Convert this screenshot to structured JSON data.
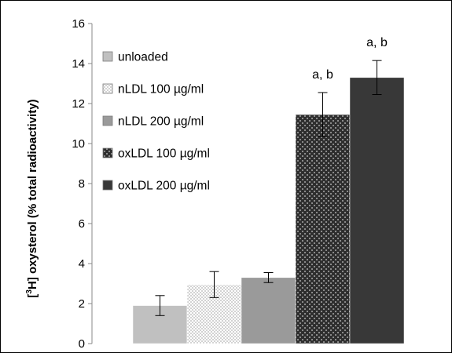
{
  "chart_data": {
    "type": "bar",
    "title": "",
    "ylabel_prefix": "[",
    "ylabel_sup": "3",
    "ylabel_suffix": "H] oxysterol (% total radioactivity)",
    "xlabel": "",
    "ylim": [
      0,
      16
    ],
    "yticks": [
      "0",
      "2",
      "4",
      "6",
      "8",
      "10",
      "12",
      "14",
      "16"
    ],
    "grid": false,
    "legend_position": "left",
    "series": [
      {
        "name": "unloaded",
        "value": 1.9,
        "error": 0.5,
        "color": "#c0c0c0",
        "pattern": "solid",
        "annotation": ""
      },
      {
        "name": "nLDL 100 µg/ml",
        "value": 2.95,
        "error": 0.65,
        "color": "#cfcfcf",
        "pattern": "fine-dots",
        "annotation": ""
      },
      {
        "name": "nLDL 200 µg/ml",
        "value": 3.3,
        "error": 0.25,
        "color": "#9a9a9a",
        "pattern": "solid",
        "annotation": ""
      },
      {
        "name": "oxLDL 100 µg/ml",
        "value": 11.45,
        "error": 1.1,
        "color": "#4a4a4a",
        "pattern": "coarse-dots",
        "annotation": "a, b"
      },
      {
        "name": "oxLDL 200 µg/ml",
        "value": 13.3,
        "error": 0.85,
        "color": "#383838",
        "pattern": "solid",
        "annotation": "a, b"
      }
    ]
  }
}
